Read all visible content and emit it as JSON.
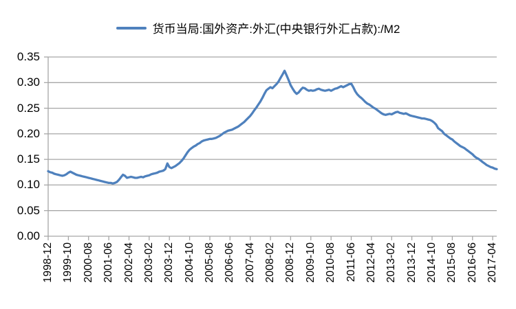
{
  "chart_data": {
    "type": "line",
    "title": "",
    "legend": "货币当局:国外资产:外汇(中央银行外汇占款):/M2",
    "legend_position": "top-center",
    "grid": "horizontal",
    "x_frequency": "monthly",
    "x_start": "1998-12",
    "x_end": "2017-06",
    "x_tick_interval_months": 10,
    "x_tick_labels": [
      "1998-12",
      "1999-10",
      "2000-08",
      "2001-06",
      "2002-04",
      "2003-02",
      "2003-12",
      "2004-10",
      "2005-08",
      "2006-06",
      "2007-04",
      "2008-02",
      "2008-12",
      "2009-10",
      "2010-08",
      "2011-06",
      "2012-04",
      "2013-02",
      "2013-12",
      "2014-10",
      "2015-08",
      "2016-06",
      "2017-04"
    ],
    "y_ticks": [
      "0.00",
      "0.05",
      "0.10",
      "0.15",
      "0.20",
      "0.25",
      "0.30",
      "0.35"
    ],
    "ylim": [
      0,
      0.35
    ],
    "line_color": "#4F81BD",
    "series": [
      {
        "name": "货币当局:国外资产:外汇(中央银行外汇占款):/M2",
        "monthly_values": [
          0.127,
          0.125,
          0.124,
          0.122,
          0.121,
          0.12,
          0.119,
          0.118,
          0.119,
          0.121,
          0.124,
          0.126,
          0.124,
          0.122,
          0.12,
          0.119,
          0.118,
          0.117,
          0.116,
          0.115,
          0.114,
          0.113,
          0.112,
          0.111,
          0.11,
          0.109,
          0.108,
          0.107,
          0.106,
          0.105,
          0.104,
          0.104,
          0.103,
          0.104,
          0.106,
          0.11,
          0.115,
          0.12,
          0.118,
          0.114,
          0.115,
          0.116,
          0.115,
          0.114,
          0.114,
          0.115,
          0.116,
          0.115,
          0.117,
          0.118,
          0.119,
          0.121,
          0.122,
          0.123,
          0.124,
          0.126,
          0.127,
          0.128,
          0.131,
          0.142,
          0.135,
          0.133,
          0.135,
          0.137,
          0.14,
          0.143,
          0.147,
          0.152,
          0.158,
          0.164,
          0.169,
          0.172,
          0.175,
          0.177,
          0.18,
          0.182,
          0.185,
          0.187,
          0.188,
          0.189,
          0.19,
          0.19,
          0.191,
          0.192,
          0.194,
          0.196,
          0.199,
          0.202,
          0.204,
          0.206,
          0.207,
          0.208,
          0.21,
          0.212,
          0.214,
          0.217,
          0.22,
          0.223,
          0.227,
          0.231,
          0.235,
          0.24,
          0.246,
          0.251,
          0.257,
          0.263,
          0.27,
          0.278,
          0.285,
          0.288,
          0.291,
          0.289,
          0.293,
          0.297,
          0.302,
          0.309,
          0.316,
          0.323,
          0.314,
          0.305,
          0.295,
          0.288,
          0.282,
          0.278,
          0.281,
          0.286,
          0.29,
          0.289,
          0.286,
          0.284,
          0.285,
          0.284,
          0.285,
          0.287,
          0.288,
          0.286,
          0.285,
          0.284,
          0.285,
          0.286,
          0.284,
          0.286,
          0.288,
          0.289,
          0.291,
          0.293,
          0.291,
          0.293,
          0.295,
          0.297,
          0.298,
          0.291,
          0.283,
          0.277,
          0.273,
          0.27,
          0.266,
          0.262,
          0.259,
          0.257,
          0.254,
          0.251,
          0.249,
          0.246,
          0.243,
          0.24,
          0.238,
          0.237,
          0.238,
          0.239,
          0.238,
          0.24,
          0.242,
          0.243,
          0.241,
          0.24,
          0.239,
          0.24,
          0.238,
          0.236,
          0.235,
          0.234,
          0.233,
          0.232,
          0.231,
          0.23,
          0.23,
          0.229,
          0.228,
          0.227,
          0.225,
          0.222,
          0.218,
          0.211,
          0.208,
          0.205,
          0.2,
          0.197,
          0.194,
          0.191,
          0.189,
          0.185,
          0.182,
          0.179,
          0.176,
          0.174,
          0.172,
          0.169,
          0.166,
          0.163,
          0.16,
          0.156,
          0.153,
          0.151,
          0.148,
          0.145,
          0.142,
          0.139,
          0.137,
          0.135,
          0.134,
          0.132,
          0.131
        ]
      }
    ]
  },
  "colors": {
    "line": "#4F81BD",
    "grid": "#A6A6A6",
    "axis": "#A6A6A6",
    "text": "#000000",
    "background": "#FFFFFF"
  }
}
